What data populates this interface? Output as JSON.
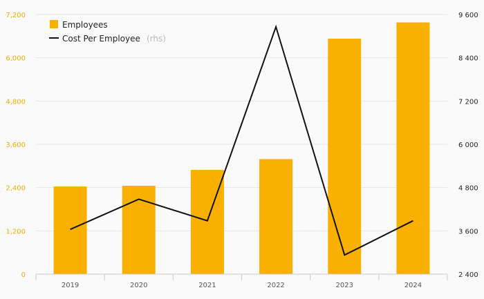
{
  "chart_data": {
    "type": "bar+line",
    "categories": [
      "2019",
      "2020",
      "2021",
      "2022",
      "2023",
      "2024"
    ],
    "series": [
      {
        "name": "Employees",
        "type": "bar",
        "axis": "left",
        "color": "#f9b000",
        "values": [
          2430,
          2450,
          2890,
          3190,
          6530,
          6980
        ]
      },
      {
        "name": "Cost Per Employee",
        "type": "line",
        "axis": "right",
        "color": "#111111",
        "values": [
          3640,
          4480,
          3880,
          9260,
          2930,
          3880
        ]
      }
    ],
    "legend": {
      "items": [
        {
          "label": "Employees",
          "suffix": ""
        },
        {
          "label": "Cost Per Employee",
          "suffix": "(rhs)"
        }
      ]
    },
    "left_axis": {
      "range": [
        0,
        7200
      ],
      "ticks": [
        0,
        1200,
        2400,
        3600,
        4800,
        6000,
        7200
      ],
      "tick_labels": [
        "0",
        "1,200",
        "2,400",
        "3,600",
        "4,800",
        "6,000",
        "7,200"
      ],
      "color": "#f2ae00"
    },
    "right_axis": {
      "range": [
        2400,
        9600
      ],
      "ticks": [
        2400,
        3600,
        4800,
        6000,
        7200,
        8400,
        9600
      ],
      "tick_labels": [
        "2 400",
        "3 600",
        "4 800",
        "6 000",
        "7 200",
        "8 400",
        "9 600"
      ],
      "color": "#222222"
    },
    "grid": true,
    "legend_position": "top-left"
  }
}
